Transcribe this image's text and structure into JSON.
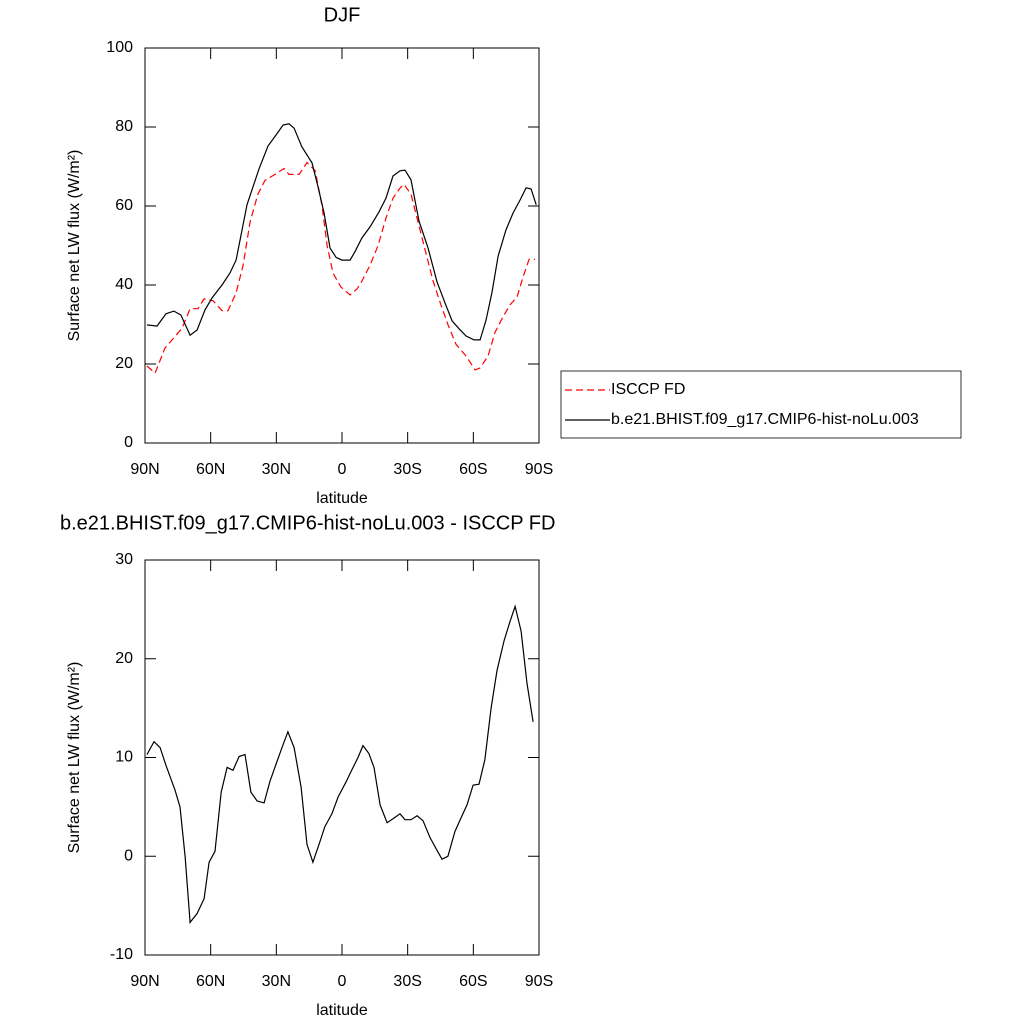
{
  "chart_data": [
    {
      "type": "line",
      "title": "DJF",
      "xlabel": "latitude",
      "ylabel": "Surface net LW flux (W/m²)",
      "xlim": [
        90,
        -90
      ],
      "xticks": [
        {
          "value": 90,
          "label": "90N"
        },
        {
          "value": 60,
          "label": "60N"
        },
        {
          "value": 30,
          "label": "30N"
        },
        0,
        {
          "value": -30,
          "label": "30S"
        },
        {
          "value": -60,
          "label": "60S"
        },
        {
          "value": -90,
          "label": "90S"
        }
      ],
      "ylim": [
        0,
        100
      ],
      "yticks": [
        0,
        20,
        40,
        60,
        80,
        100
      ],
      "legend": "right",
      "series": [
        {
          "name": "ISCCP FD",
          "color": "#ff0000",
          "line_style": "dashed",
          "x": [
            89.1,
            85.4,
            80.9,
            76.3,
            73.1,
            69.4,
            65.8,
            63.0,
            58.9,
            54.8,
            52.1,
            48.4,
            45.2,
            42.0,
            38.4,
            35.2,
            30.6,
            26.5,
            24.2,
            19.6,
            16.0,
            12.3,
            9.1,
            6.8,
            4.1,
            0.5,
            -3.7,
            -6.9,
            -9.1,
            -12.8,
            -16.5,
            -20.1,
            -23.3,
            -26.5,
            -28.3,
            -31.5,
            -34.7,
            -37.9,
            -41.6,
            -45.2,
            -48.4,
            -52.1,
            -56.7,
            -60.8,
            -63.1,
            -66.7,
            -69.9,
            -73.6,
            -76.8,
            -80.0,
            -82.7,
            -85.5,
            -88.2
          ],
          "values": [
            19.5,
            17.7,
            24,
            27,
            29,
            34,
            34,
            36.5,
            36,
            33.5,
            33.5,
            38,
            45,
            56,
            63,
            66.5,
            68,
            69.5,
            68,
            68,
            71,
            69,
            60,
            50,
            43,
            39.5,
            37.5,
            39,
            41,
            45,
            50,
            57,
            62,
            64.5,
            65.5,
            63,
            56,
            49,
            41,
            35,
            30,
            25,
            22,
            18.5,
            19,
            22,
            28,
            32,
            35,
            37,
            42,
            46.5,
            46.5
          ]
        },
        {
          "name": "b.e21.BHIST.f09_g17.CMIP6-hist-noLu.003",
          "color": "#000000",
          "line_style": "solid",
          "x": [
            89.1,
            84.5,
            80.4,
            76.8,
            73.6,
            69.4,
            66.2,
            62.6,
            59.4,
            54.8,
            51.2,
            48.4,
            43.4,
            37.9,
            33.8,
            30.1,
            26.9,
            24.2,
            21.9,
            18.3,
            13.7,
            11.0,
            8.2,
            5.5,
            2.7,
            0.0,
            -3.7,
            -5.9,
            -9.1,
            -12.8,
            -16.9,
            -20.1,
            -23.3,
            -26.5,
            -28.8,
            -31.5,
            -35.2,
            -39.3,
            -43.4,
            -47.1,
            -50.3,
            -53.5,
            -56.7,
            -60.3,
            -63.1,
            -65.8,
            -68.5,
            -71.3,
            -74.9,
            -78.1,
            -81.3,
            -84.1,
            -86.4,
            -88.7
          ],
          "values": [
            29.9,
            29.6,
            32.7,
            33.4,
            32.4,
            27.3,
            28.6,
            33.7,
            36.7,
            40,
            43,
            46.3,
            60.3,
            69.4,
            75.2,
            78,
            80.5,
            80.8,
            79.7,
            75,
            70.9,
            65,
            58.2,
            49.4,
            47,
            46.3,
            46.3,
            48.4,
            51.9,
            54.7,
            58.5,
            62,
            67.6,
            68.9,
            69.1,
            66.6,
            56.2,
            49.4,
            40.8,
            35.4,
            30.9,
            28.9,
            27.1,
            26.1,
            26.1,
            31.1,
            38,
            47.3,
            53.9,
            58.2,
            61.5,
            64.6,
            64.3,
            60.3
          ]
        }
      ]
    },
    {
      "type": "line",
      "title": "b.e21.BHIST.f09_g17.CMIP6-hist-noLu.003 - ISCCP FD",
      "xlabel": "latitude",
      "ylabel": "Surface net LW flux (W/m²)",
      "xlim": [
        90,
        -90
      ],
      "xticks": [
        {
          "value": 90,
          "label": "90N"
        },
        {
          "value": 60,
          "label": "60N"
        },
        {
          "value": 30,
          "label": "30N"
        },
        0,
        {
          "value": -30,
          "label": "30S"
        },
        {
          "value": -60,
          "label": "60S"
        },
        {
          "value": -90,
          "label": "90S"
        }
      ],
      "ylim": [
        -10,
        30
      ],
      "yticks": [
        -10,
        0,
        10,
        20,
        30
      ],
      "series": [
        {
          "color": "#000000",
          "line_style": "solid",
          "x": [
            89.1,
            85.9,
            83.1,
            80.4,
            76.3,
            74.0,
            71.7,
            69.4,
            66.2,
            63.0,
            60.7,
            58.0,
            55.2,
            52.5,
            49.8,
            47.0,
            44.3,
            41.6,
            38.8,
            35.6,
            32.9,
            29.7,
            27.4,
            24.7,
            21.9,
            18.7,
            16.0,
            13.3,
            10.5,
            7.8,
            4.6,
            1.8,
            -1.8,
            -4.6,
            -7.3,
            -9.6,
            -12.3,
            -14.6,
            -17.4,
            -20.6,
            -23.3,
            -26.5,
            -28.8,
            -31.5,
            -34.3,
            -37.0,
            -40.2,
            -43.4,
            -45.7,
            -48.4,
            -51.6,
            -54.4,
            -57.1,
            -59.9,
            -62.6,
            -65.3,
            -68.1,
            -70.8,
            -74.0,
            -76.8,
            -79.1,
            -81.8,
            -84.5,
            -87.3
          ],
          "values": [
            10.3,
            11.6,
            11,
            9.2,
            6.7,
            5,
            0,
            -6.7,
            -5.8,
            -4.3,
            -0.6,
            0.5,
            6.5,
            9,
            8.7,
            10.1,
            10.3,
            6.5,
            5.6,
            5.4,
            7.6,
            9.6,
            11,
            12.6,
            11,
            7,
            1.2,
            -0.6,
            1.2,
            3,
            4.3,
            6,
            7.5,
            8.8,
            10,
            11.2,
            10.4,
            9,
            5.2,
            3.4,
            3.8,
            4.3,
            3.7,
            3.7,
            4.1,
            3.6,
            1.9,
            0.6,
            -0.3,
            0,
            2.5,
            3.9,
            5.2,
            7.2,
            7.3,
            9.8,
            15,
            18.8,
            21.8,
            23.8,
            25.3,
            22.8,
            17.5,
            13.6
          ]
        }
      ]
    }
  ]
}
